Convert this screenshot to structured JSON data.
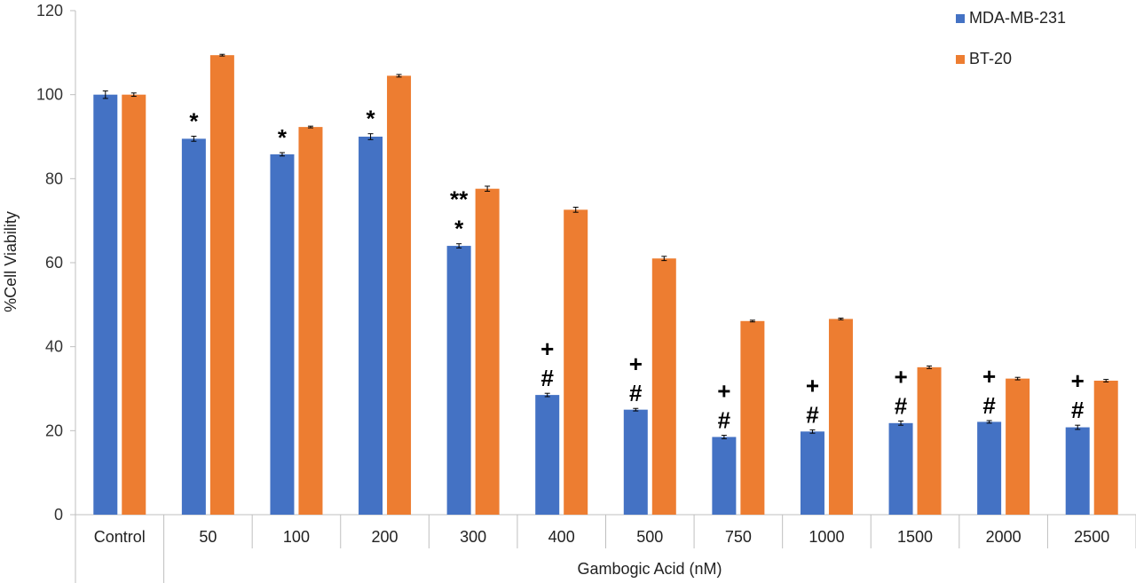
{
  "chart_data": {
    "type": "bar",
    "categories": [
      "Control",
      "50",
      "100",
      "200",
      "300",
      "400",
      "500",
      "750",
      "1000",
      "1500",
      "2000",
      "2500"
    ],
    "series": [
      {
        "name": "MDA-MB-231",
        "color": "#4472C4",
        "values": [
          100,
          89.5,
          85.8,
          90,
          64,
          28.5,
          25,
          18.5,
          19.8,
          21.8,
          22.1,
          20.8
        ],
        "errors": [
          0.9,
          0.6,
          0.4,
          0.7,
          0.5,
          0.4,
          0.3,
          0.4,
          0.4,
          0.5,
          0.3,
          0.5
        ]
      },
      {
        "name": "BT-20",
        "color": "#ED7D31",
        "values": [
          100,
          109.4,
          92.3,
          104.5,
          77.6,
          72.6,
          61,
          46.1,
          46.6,
          35.1,
          32.4,
          31.9
        ],
        "errors": [
          0.4,
          0.2,
          0.2,
          0.3,
          0.6,
          0.6,
          0.5,
          0.2,
          0.2,
          0.3,
          0.3,
          0.3
        ]
      }
    ],
    "annotations": [
      {
        "category": "50",
        "lines": [
          "*"
        ]
      },
      {
        "category": "100",
        "lines": [
          "*"
        ]
      },
      {
        "category": "200",
        "lines": [
          "*"
        ]
      },
      {
        "category": "300",
        "lines": [
          "**",
          "*"
        ]
      },
      {
        "category": "400",
        "lines": [
          "+",
          "#"
        ]
      },
      {
        "category": "500",
        "lines": [
          "+",
          "#"
        ]
      },
      {
        "category": "750",
        "lines": [
          "+",
          "#"
        ]
      },
      {
        "category": "1000",
        "lines": [
          "+",
          "#"
        ]
      },
      {
        "category": "1500",
        "lines": [
          "+",
          "#"
        ]
      },
      {
        "category": "2000",
        "lines": [
          "+",
          "#"
        ]
      },
      {
        "category": "2500",
        "lines": [
          "+",
          "#"
        ]
      }
    ],
    "ylabel": "%Cell Viability",
    "xlabel": "Gambogic Acid (nM)",
    "ylim": [
      0,
      120
    ],
    "yticks": [
      0,
      20,
      40,
      60,
      80,
      100,
      120
    ],
    "grid": false,
    "legend_position": "top-right"
  }
}
